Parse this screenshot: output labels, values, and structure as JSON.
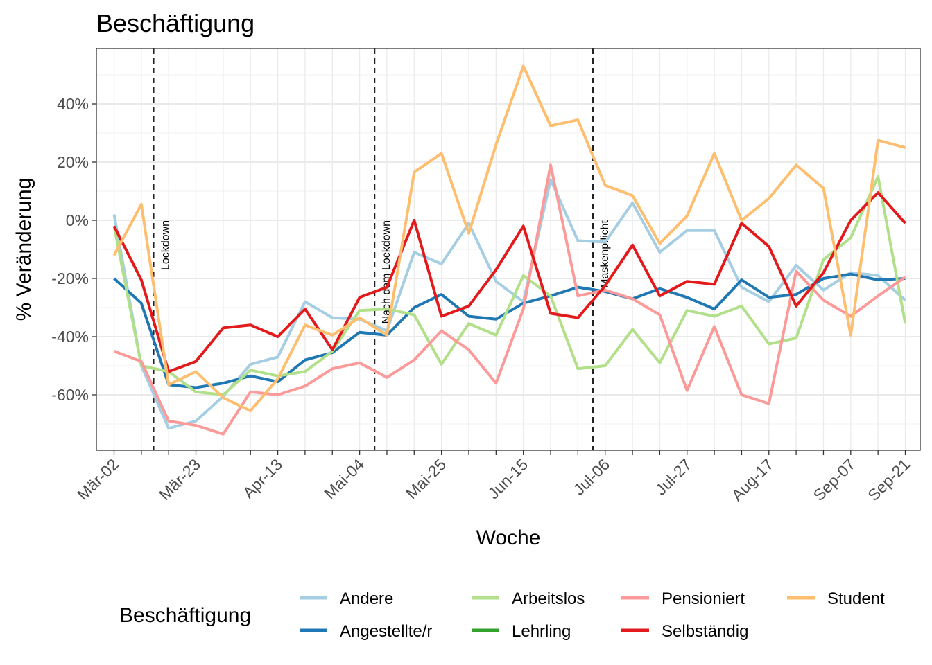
{
  "chart_data": {
    "type": "line",
    "title": "Beschäftigung",
    "xlabel": "Woche",
    "ylabel": "% Veränderung",
    "ylim": [
      -80,
      57
    ],
    "yticks": [
      -60,
      -40,
      -20,
      0,
      20,
      40
    ],
    "ytick_labels": [
      "-60%",
      "-40%",
      "-20%",
      "0%",
      "20%",
      "40%"
    ],
    "x_tick_labels": [
      "Mär-02",
      "Mär-23",
      "Apr-13",
      "Mai-04",
      "Mai-25",
      "Jun-15",
      "Jul-06",
      "Jul-27",
      "Aug-17",
      "Sep-07",
      "Sep-21"
    ],
    "x_tick_weeks": [
      0,
      3,
      6,
      9,
      12,
      15,
      18,
      21,
      24,
      27,
      29
    ],
    "week_count": 30,
    "grid": true,
    "legend_title": "Beschäftigung",
    "legend_position": "bottom",
    "vlines": [
      {
        "week": 1.45,
        "label": "Lockdown"
      },
      {
        "week": 9.55,
        "label": "Nach dem Lockdown"
      },
      {
        "week": 17.55,
        "label": "Maskenpflicht"
      }
    ],
    "series": [
      {
        "name": "Andere",
        "color": "#a6cee3",
        "values": [
          2,
          -50,
          -71.5,
          -69,
          -60.5,
          -49.5,
          -47,
          -28,
          -33.5,
          -34,
          -38,
          -11,
          -15,
          -1,
          -21,
          -28,
          14,
          -7,
          -7.5,
          6,
          -11,
          -3.5,
          -3.5,
          -23,
          -28,
          -15.5,
          -24,
          -18,
          -19,
          -27.5
        ]
      },
      {
        "name": "Angestellte/r",
        "color": "#1f78b4",
        "values": [
          -20,
          -28.5,
          -56.5,
          -57.5,
          -56,
          -53.5,
          -55.5,
          -48,
          -45.5,
          -38.5,
          -39.5,
          -30,
          -25.5,
          -33,
          -34,
          -28.5,
          -26,
          -23,
          -24.5,
          -27,
          -23.5,
          -26.5,
          -30.5,
          -20.5,
          -26.5,
          -25.5,
          -20,
          -18.5,
          -20.5,
          -20
        ]
      },
      {
        "name": "Arbeitslos",
        "color": "#b2df8a",
        "values": [
          -2,
          -50,
          -52,
          -59,
          -60,
          -51.5,
          -53.5,
          -52,
          -45,
          -31,
          -30.5,
          -32.5,
          -49.5,
          -35.5,
          -39.5,
          -19,
          -26,
          -51,
          -50,
          -37.5,
          -49,
          -31,
          -33,
          -29.5,
          -42.5,
          -40.5,
          -13.5,
          -6,
          15,
          -35.5
        ]
      },
      {
        "name": "Lehrling",
        "color": "#33a02c",
        "values": []
      },
      {
        "name": "Pensioniert",
        "color": "#fb9a99",
        "values": [
          -45,
          -48.5,
          -69,
          -70.5,
          -73.5,
          -59,
          -60,
          -57,
          -51,
          -49,
          -54,
          -48,
          -38,
          -44.5,
          -56,
          -30.5,
          19,
          -26,
          -24,
          -27,
          -32.5,
          -58.5,
          -36.5,
          -60,
          -63,
          -17.5,
          -27.5,
          -33,
          -26,
          -19.5
        ]
      },
      {
        "name": "Selbständig",
        "color": "#e31a1c",
        "values": [
          -2,
          -20.5,
          -52,
          -48.5,
          -37,
          -36,
          -40,
          -30.5,
          -44.5,
          -26.5,
          -23,
          0,
          -33,
          -29.5,
          -17,
          -2,
          -32,
          -33.5,
          -22.5,
          -8.5,
          -26,
          -21,
          -22,
          -1,
          -9,
          -29.5,
          -18,
          0,
          9.5,
          -1
        ]
      },
      {
        "name": "Student",
        "color": "#fdbf6f",
        "values": [
          -12,
          5.5,
          -56.5,
          -52,
          -61,
          -65.5,
          -54.5,
          -36,
          -39.5,
          -33.5,
          -39.5,
          16.5,
          23,
          -4.5,
          26,
          53,
          32.5,
          34.5,
          12,
          8.5,
          -8,
          1.5,
          23,
          0,
          7.5,
          19,
          11,
          -39.5,
          27.5,
          25
        ]
      }
    ]
  }
}
